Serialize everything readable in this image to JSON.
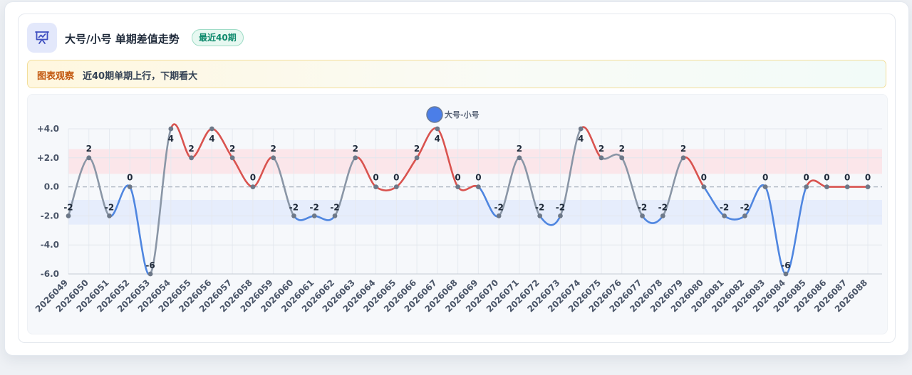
{
  "header": {
    "icon": "presentation-chart-icon",
    "title": "大号/小号 单期差值走势",
    "badge": "最近40期"
  },
  "insight": {
    "label": "图表观察",
    "text": "近40期单期上行，下期看大"
  },
  "colors": {
    "up": "#d9534f",
    "down": "#4f86e0",
    "flat": "#8a96a6",
    "point": "#6d7888",
    "legend": "#4b7ee8",
    "band_positive": "#fbe3e6",
    "band_negative": "#e3ebfb"
  },
  "chart_data": {
    "type": "line",
    "legend": [
      "大号-小号"
    ],
    "legend_position": "top-center",
    "x": [
      "2026049",
      "2026050",
      "2026051",
      "2026052",
      "2026053",
      "2026054",
      "2026055",
      "2026056",
      "2026057",
      "2026058",
      "2026059",
      "2026060",
      "2026061",
      "2026062",
      "2026063",
      "2026064",
      "2026065",
      "2026066",
      "2026067",
      "2026068",
      "2026069",
      "2026070",
      "2026071",
      "2026072",
      "2026073",
      "2026074",
      "2026075",
      "2026076",
      "2026077",
      "2026078",
      "2026079",
      "2026080",
      "2026081",
      "2026082",
      "2026083",
      "2026084",
      "2026085",
      "2026086",
      "2026087",
      "2026088"
    ],
    "series": [
      {
        "name": "大号-小号",
        "values": [
          -2,
          2,
          -2,
          0,
          -6,
          4,
          2,
          4,
          2,
          0,
          2,
          -2,
          -2,
          -2,
          2,
          0,
          0,
          2,
          4,
          0,
          0,
          -2,
          2,
          -2,
          -2,
          4,
          2,
          2,
          -2,
          -2,
          2,
          0,
          -2,
          -2,
          0,
          -6,
          0,
          0,
          0,
          0
        ]
      }
    ],
    "y_ticks": [
      "+4.0",
      "+2.0",
      "0.0",
      "-2.0",
      "-4.0",
      "-6.0"
    ],
    "ylim": [
      -6,
      4
    ],
    "bands": [
      {
        "from": 0.9,
        "to": 2.6,
        "color": "positive"
      },
      {
        "from": -2.6,
        "to": -0.9,
        "color": "negative"
      }
    ],
    "reference_line": 0,
    "grid": true,
    "data_labels": true,
    "line_colors": "segment color by direction: up red, down blue, otherwise gray"
  }
}
